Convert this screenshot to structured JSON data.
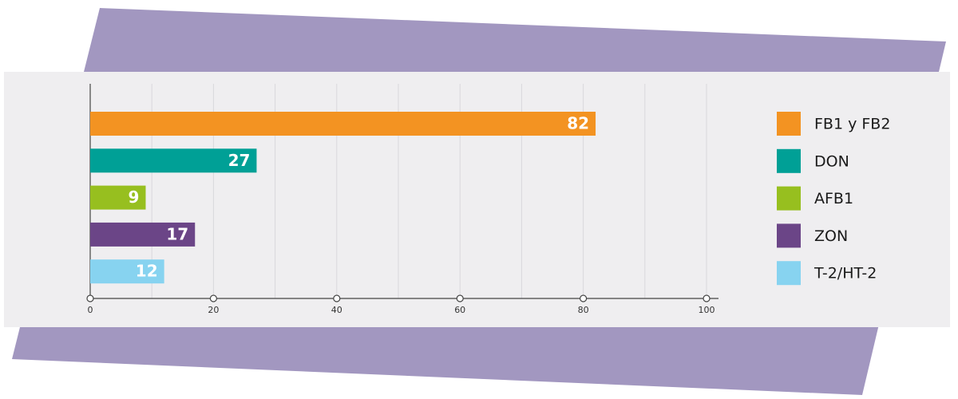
{
  "chart_data": {
    "type": "bar",
    "orientation": "horizontal",
    "categories": [
      "FB1 y FB2",
      "DON",
      "AFB1",
      "ZON",
      "T-2/HT-2"
    ],
    "values": [
      82,
      27,
      9,
      17,
      12
    ],
    "colors": [
      "#f39322",
      "#00a096",
      "#97bf1f",
      "#6b4587",
      "#87d3f0"
    ],
    "xlim": [
      0,
      100
    ],
    "xticks": [
      0,
      20,
      40,
      60,
      80,
      100
    ],
    "minor_xticks": [
      10,
      30,
      50,
      70,
      90
    ],
    "grid": true,
    "legend": "right"
  }
}
